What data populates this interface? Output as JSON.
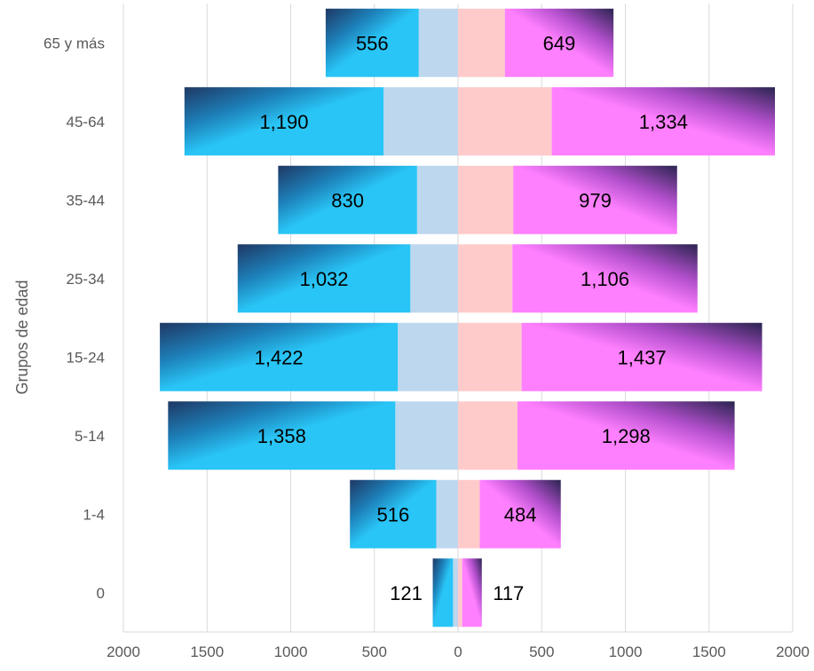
{
  "chart_data": {
    "type": "bar",
    "orientation": "horizontal",
    "layout": "population-pyramid",
    "ylabel": "Grupos de edad",
    "xlabel": "",
    "categories": [
      "65 y más",
      "45-64",
      "35-44",
      "25-34",
      "15-24",
      "5-14",
      "1-4",
      "0"
    ],
    "xlim": [
      -2000,
      2000
    ],
    "x_ticks": [
      "2000",
      "1500",
      "1000",
      "500",
      "0",
      "500",
      "1000",
      "1500",
      "2000"
    ],
    "grid": "vertical",
    "series": [
      {
        "side": "left",
        "kind": "inner",
        "values": [
          235,
          445,
          245,
          285,
          360,
          375,
          130,
          30
        ],
        "color": "#BDD7EE"
      },
      {
        "side": "left",
        "kind": "outer",
        "values": [
          556,
          1190,
          830,
          1032,
          1422,
          1358,
          516,
          121
        ],
        "color": "#29C5F6",
        "label_values": [
          "556",
          "1,190",
          "830",
          "1,032",
          "1,422",
          "1,358",
          "516",
          "121"
        ]
      },
      {
        "side": "right",
        "kind": "inner",
        "values": [
          280,
          560,
          330,
          325,
          380,
          355,
          130,
          25
        ],
        "color": "#FFCACA"
      },
      {
        "side": "right",
        "kind": "outer",
        "values": [
          649,
          1334,
          979,
          1106,
          1437,
          1298,
          484,
          117
        ],
        "color": "#FF80FF",
        "label_values": [
          "649",
          "1,334",
          "979",
          "1,106",
          "1,437",
          "1,298",
          "484",
          "117"
        ]
      }
    ]
  }
}
